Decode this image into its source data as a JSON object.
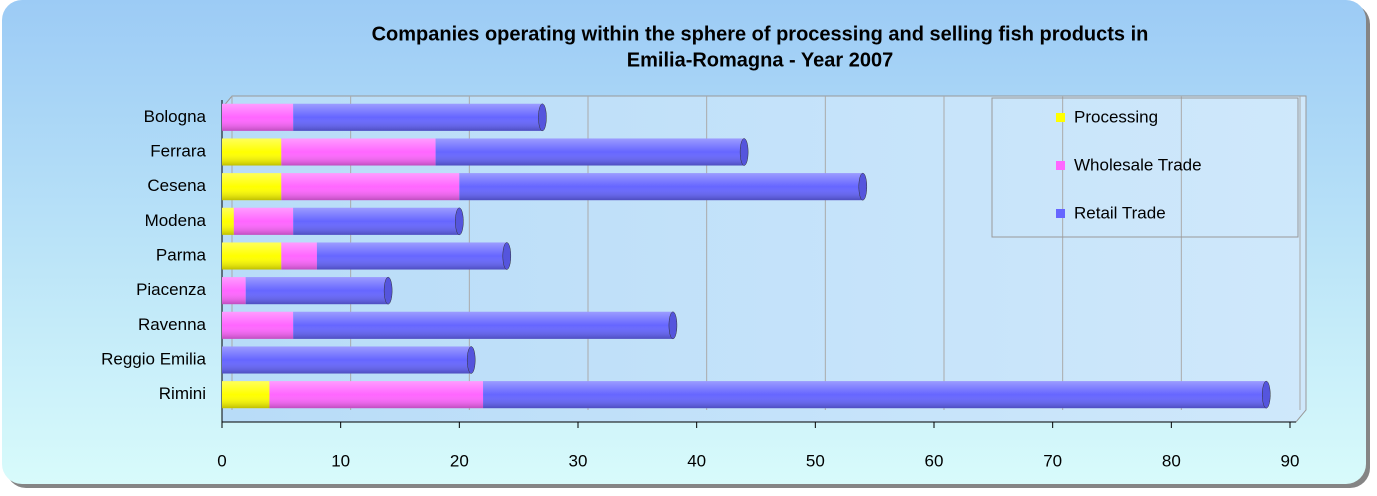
{
  "chart_data": {
    "type": "stacked-hbar",
    "title": "Companies operating within the sphere of processing and selling fish products in",
    "subtitle": "Emilia-Romagna - Year 2007",
    "categories": [
      "Bologna",
      "Ferrara",
      "Cesena",
      "Modena",
      "Parma",
      "Piacenza",
      "Ravenna",
      "Reggio Emilia",
      "Rimini"
    ],
    "series": [
      {
        "name": "Processing",
        "color": "#ffff00",
        "values": [
          0,
          5,
          5,
          1,
          5,
          0,
          0,
          0,
          4
        ]
      },
      {
        "name": "Wholesale Trade",
        "color": "#ff66ff",
        "values": [
          6,
          13,
          15,
          5,
          3,
          2,
          6,
          0,
          18
        ]
      },
      {
        "name": "Retail Trade",
        "color": "#6666ff",
        "values": [
          21,
          26,
          34,
          14,
          16,
          12,
          32,
          21,
          66
        ]
      }
    ],
    "xlim": [
      0,
      90
    ],
    "xticks": [
      0,
      10,
      20,
      30,
      40,
      50,
      60,
      70,
      80,
      90
    ],
    "grid": true,
    "legend": "top-right"
  }
}
